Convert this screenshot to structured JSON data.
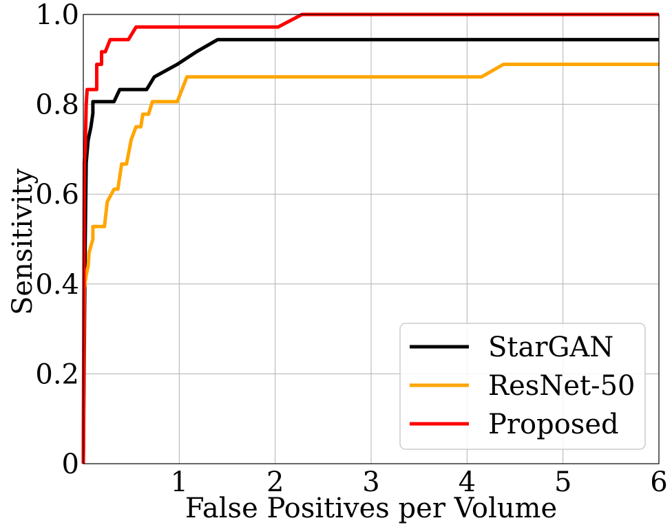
{
  "chart_data": {
    "type": "line",
    "title": "",
    "xlabel": "False Positives per Volume",
    "ylabel": "Sensitivity",
    "xlim": [
      0,
      6
    ],
    "ylim": [
      0,
      1.0
    ],
    "x_ticks": [
      1,
      2,
      3,
      4,
      5,
      6
    ],
    "x_tick_labels": [
      "1",
      "2",
      "3",
      "4",
      "5",
      "6"
    ],
    "y_ticks": [
      0,
      0.2,
      0.4,
      0.6,
      0.8,
      1.0
    ],
    "y_tick_labels": [
      "0",
      "0.2",
      "0.4",
      "0.6",
      "0.8",
      "1.0"
    ],
    "grid": true,
    "legend_position": "lower-right",
    "series": [
      {
        "name": "StarGAN",
        "color": "#000000",
        "points": [
          [
            0,
            0
          ],
          [
            0.01,
            0.25
          ],
          [
            0.02,
            0.5
          ],
          [
            0.03,
            0.67
          ],
          [
            0.05,
            0.72
          ],
          [
            0.08,
            0.75
          ],
          [
            0.1,
            0.78
          ],
          [
            0.1,
            0.806
          ],
          [
            0.32,
            0.806
          ],
          [
            0.38,
            0.833
          ],
          [
            0.66,
            0.833
          ],
          [
            0.74,
            0.861
          ],
          [
            0.98,
            0.889
          ],
          [
            1.18,
            0.917
          ],
          [
            1.4,
            0.944
          ],
          [
            6,
            0.944
          ]
        ]
      },
      {
        "name": "ResNet-50",
        "color": "#ffa500",
        "points": [
          [
            0,
            0
          ],
          [
            0.01,
            0.39
          ],
          [
            0.03,
            0.42
          ],
          [
            0.05,
            0.44
          ],
          [
            0.06,
            0.47
          ],
          [
            0.1,
            0.5
          ],
          [
            0.1,
            0.528
          ],
          [
            0.22,
            0.528
          ],
          [
            0.25,
            0.583
          ],
          [
            0.32,
            0.611
          ],
          [
            0.36,
            0.611
          ],
          [
            0.4,
            0.667
          ],
          [
            0.45,
            0.667
          ],
          [
            0.5,
            0.722
          ],
          [
            0.55,
            0.75
          ],
          [
            0.6,
            0.75
          ],
          [
            0.62,
            0.778
          ],
          [
            0.68,
            0.778
          ],
          [
            0.72,
            0.806
          ],
          [
            0.98,
            0.806
          ],
          [
            1.08,
            0.861
          ],
          [
            4.15,
            0.861
          ],
          [
            4.38,
            0.889
          ],
          [
            6,
            0.889
          ]
        ]
      },
      {
        "name": "Proposed",
        "color": "#ff0000",
        "points": [
          [
            0,
            0
          ],
          [
            0.01,
            0.67
          ],
          [
            0.02,
            0.7
          ],
          [
            0.03,
            0.8
          ],
          [
            0.04,
            0.833
          ],
          [
            0.14,
            0.833
          ],
          [
            0.14,
            0.889
          ],
          [
            0.19,
            0.889
          ],
          [
            0.19,
            0.917
          ],
          [
            0.23,
            0.917
          ],
          [
            0.28,
            0.944
          ],
          [
            0.47,
            0.944
          ],
          [
            0.55,
            0.972
          ],
          [
            2.03,
            0.972
          ],
          [
            2.28,
            1.0
          ],
          [
            6,
            1.0
          ]
        ]
      }
    ]
  }
}
